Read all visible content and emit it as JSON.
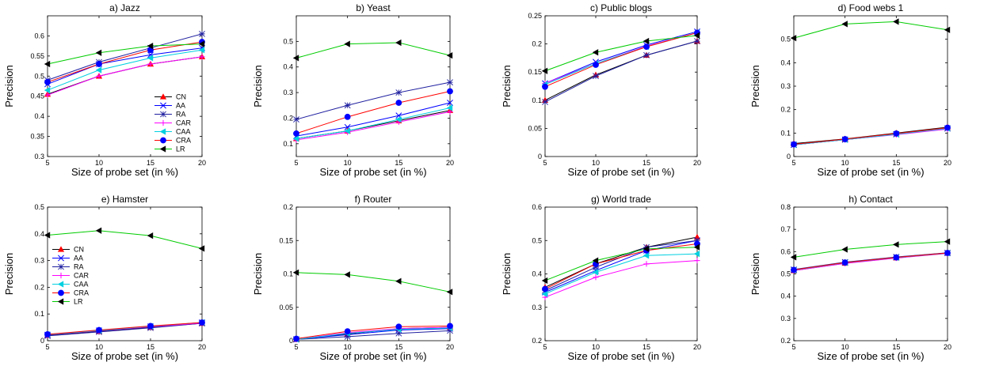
{
  "figure": {
    "series_colors": {
      "CN": "#000000",
      "AA": "#0000ff",
      "RA": "#1f1fa0",
      "CAR": "#ff00ff",
      "CAA": "#00d0e0",
      "CRA": "#ff0000",
      "LR": "#00cc00"
    },
    "marker_colors": {
      "CN": "#ff0000",
      "AA": "#0000ff",
      "RA": "#1f1fa0",
      "CAR": "#ff00ff",
      "CAA": "#00d0e0",
      "CRA": "#0000ff",
      "LR": "#000000"
    },
    "markers": {
      "CN": "triangle-up",
      "AA": "x",
      "RA": "asterisk",
      "CAR": "plus",
      "CAA": "triangle-left",
      "CRA": "circle",
      "LR": "triangle-left"
    }
  },
  "chart_data": [
    {
      "type": "line",
      "title": "a) Jazz",
      "xlabel": "Size of probe set (in %)",
      "ylabel": "Precision",
      "x": [
        5,
        10,
        15,
        20
      ],
      "xticks": [
        5,
        10,
        15,
        20
      ],
      "ylim": [
        0.3,
        0.65
      ],
      "yticks": [
        0.3,
        0.35,
        0.4,
        0.45,
        0.5,
        0.55,
        0.6
      ],
      "yticklabels": [
        "0.3",
        "0.35",
        "0.4",
        "0.45",
        "0.5",
        "0.55",
        "0.6"
      ],
      "legend": "bottom-right",
      "series": [
        {
          "name": "CN",
          "values": [
            0.455,
            0.5,
            0.53,
            0.548
          ]
        },
        {
          "name": "AA",
          "values": [
            0.48,
            0.53,
            0.553,
            0.57
          ]
        },
        {
          "name": "RA",
          "values": [
            0.49,
            0.535,
            0.57,
            0.605
          ]
        },
        {
          "name": "CAR",
          "values": [
            0.453,
            0.5,
            0.53,
            0.548
          ]
        },
        {
          "name": "CAA",
          "values": [
            0.465,
            0.515,
            0.545,
            0.565
          ]
        },
        {
          "name": "CRA",
          "values": [
            0.485,
            0.53,
            0.565,
            0.585
          ]
        },
        {
          "name": "LR",
          "values": [
            0.53,
            0.558,
            0.575,
            0.58
          ]
        }
      ]
    },
    {
      "type": "line",
      "title": "b) Yeast",
      "xlabel": "Size of probe set (in %)",
      "ylabel": "Precision",
      "x": [
        5,
        10,
        15,
        20
      ],
      "xticks": [
        5,
        10,
        15,
        20
      ],
      "ylim": [
        0.05,
        0.6
      ],
      "yticks": [
        0.1,
        0.2,
        0.3,
        0.4,
        0.5
      ],
      "yticklabels": [
        "0.1",
        "0.2",
        "0.3",
        "0.4",
        "0.5"
      ],
      "series": [
        {
          "name": "CN",
          "values": [
            0.12,
            0.15,
            0.19,
            0.23
          ]
        },
        {
          "name": "AA",
          "values": [
            0.13,
            0.165,
            0.21,
            0.26
          ]
        },
        {
          "name": "RA",
          "values": [
            0.195,
            0.25,
            0.3,
            0.34
          ]
        },
        {
          "name": "CAR",
          "values": [
            0.115,
            0.145,
            0.185,
            0.225
          ]
        },
        {
          "name": "CAA",
          "values": [
            0.12,
            0.15,
            0.195,
            0.24
          ]
        },
        {
          "name": "CRA",
          "values": [
            0.14,
            0.205,
            0.26,
            0.305
          ]
        },
        {
          "name": "LR",
          "values": [
            0.435,
            0.49,
            0.495,
            0.445
          ]
        }
      ]
    },
    {
      "type": "line",
      "title": "c) Public blogs",
      "xlabel": "Size of probe set (in %)",
      "ylabel": "Precision",
      "x": [
        5,
        10,
        15,
        20
      ],
      "xticks": [
        5,
        10,
        15,
        20
      ],
      "ylim": [
        0,
        0.25
      ],
      "yticks": [
        0,
        0.05,
        0.1,
        0.15,
        0.2,
        0.25
      ],
      "yticklabels": [
        "0",
        "0.05",
        "0.1",
        "0.15",
        "0.2",
        "0.25"
      ],
      "series": [
        {
          "name": "CN",
          "values": [
            0.1,
            0.145,
            0.18,
            0.205
          ]
        },
        {
          "name": "AA",
          "values": [
            0.13,
            0.168,
            0.198,
            0.222
          ]
        },
        {
          "name": "RA",
          "values": [
            0.097,
            0.143,
            0.18,
            0.205
          ]
        },
        {
          "name": "CAR",
          "values": [
            0.13,
            0.165,
            0.196,
            0.22
          ]
        },
        {
          "name": "CAA",
          "values": [
            0.128,
            0.165,
            0.195,
            0.22
          ]
        },
        {
          "name": "CRA",
          "values": [
            0.124,
            0.163,
            0.195,
            0.22
          ]
        },
        {
          "name": "LR",
          "values": [
            0.152,
            0.185,
            0.205,
            0.215
          ]
        }
      ]
    },
    {
      "type": "line",
      "title": "d) Food webs 1",
      "xlabel": "Size of probe set (in %)",
      "ylabel": "Precision",
      "x": [
        5,
        10,
        15,
        20
      ],
      "xticks": [
        5,
        10,
        15,
        20
      ],
      "ylim": [
        0,
        0.6
      ],
      "yticks": [
        0,
        0.1,
        0.2,
        0.3,
        0.4,
        0.5
      ],
      "yticklabels": [
        "0",
        "0.1",
        "0.2",
        "0.3",
        "0.4",
        "0.5"
      ],
      "series": [
        {
          "name": "CN",
          "values": [
            0.055,
            0.075,
            0.1,
            0.125
          ]
        },
        {
          "name": "AA",
          "values": [
            0.05,
            0.072,
            0.095,
            0.12
          ]
        },
        {
          "name": "RA",
          "values": [
            0.05,
            0.072,
            0.095,
            0.12
          ]
        },
        {
          "name": "CAR",
          "values": [
            0.05,
            0.072,
            0.093,
            0.117
          ]
        },
        {
          "name": "CAA",
          "values": [
            0.05,
            0.072,
            0.095,
            0.12
          ]
        },
        {
          "name": "CRA",
          "values": [
            0.052,
            0.074,
            0.098,
            0.123
          ]
        },
        {
          "name": "LR",
          "values": [
            0.505,
            0.565,
            0.575,
            0.54
          ]
        }
      ]
    },
    {
      "type": "line",
      "title": "e) Hamster",
      "xlabel": "Size of probe set (in %)",
      "ylabel": "Precision",
      "x": [
        5,
        10,
        15,
        20
      ],
      "xticks": [
        5,
        10,
        15,
        20
      ],
      "ylim": [
        0,
        0.5
      ],
      "yticks": [
        0,
        0.1,
        0.2,
        0.3,
        0.4,
        0.5
      ],
      "yticklabels": [
        "0",
        "0.1",
        "0.2",
        "0.3",
        "0.4",
        "0.5"
      ],
      "legend": "top-left",
      "series": [
        {
          "name": "CN",
          "values": [
            0.02,
            0.035,
            0.05,
            0.065
          ]
        },
        {
          "name": "AA",
          "values": [
            0.022,
            0.038,
            0.053,
            0.068
          ]
        },
        {
          "name": "RA",
          "values": [
            0.018,
            0.033,
            0.048,
            0.065
          ]
        },
        {
          "name": "CAR",
          "values": [
            0.022,
            0.037,
            0.052,
            0.066
          ]
        },
        {
          "name": "CAA",
          "values": [
            0.023,
            0.038,
            0.054,
            0.068
          ]
        },
        {
          "name": "CRA",
          "values": [
            0.024,
            0.04,
            0.055,
            0.068
          ]
        },
        {
          "name": "LR",
          "values": [
            0.395,
            0.412,
            0.393,
            0.345
          ]
        }
      ]
    },
    {
      "type": "line",
      "title": "f) Router",
      "xlabel": "Size of probe set (in %)",
      "ylabel": "Precision",
      "x": [
        5,
        10,
        15,
        20
      ],
      "xticks": [
        5,
        10,
        15,
        20
      ],
      "ylim": [
        0,
        0.2
      ],
      "yticks": [
        0,
        0.05,
        0.1,
        0.15,
        0.2
      ],
      "yticklabels": [
        "0",
        "0.05",
        "0.1",
        "0.15",
        "0.2"
      ],
      "series": [
        {
          "name": "CN",
          "values": [
            0.002,
            0.01,
            0.018,
            0.02
          ]
        },
        {
          "name": "AA",
          "values": [
            0.002,
            0.009,
            0.016,
            0.018
          ]
        },
        {
          "name": "RA",
          "values": [
            0.002,
            0.006,
            0.011,
            0.015
          ]
        },
        {
          "name": "CAR",
          "values": [
            0.002,
            0.012,
            0.018,
            0.02
          ]
        },
        {
          "name": "CAA",
          "values": [
            0.002,
            0.011,
            0.017,
            0.019
          ]
        },
        {
          "name": "CRA",
          "values": [
            0.003,
            0.014,
            0.021,
            0.022
          ]
        },
        {
          "name": "LR",
          "values": [
            0.102,
            0.099,
            0.089,
            0.073
          ]
        }
      ]
    },
    {
      "type": "line",
      "title": "g) World trade",
      "xlabel": "Size of probe set (in %)",
      "ylabel": "Precision",
      "x": [
        5,
        10,
        15,
        20
      ],
      "xticks": [
        5,
        10,
        15,
        20
      ],
      "ylim": [
        0.2,
        0.6
      ],
      "yticks": [
        0.2,
        0.3,
        0.4,
        0.5,
        0.6
      ],
      "yticklabels": [
        "0.2",
        "0.3",
        "0.4",
        "0.5",
        "0.6"
      ],
      "series": [
        {
          "name": "CN",
          "values": [
            0.36,
            0.43,
            0.48,
            0.51
          ]
        },
        {
          "name": "AA",
          "values": [
            0.345,
            0.41,
            0.47,
            0.5
          ]
        },
        {
          "name": "RA",
          "values": [
            0.35,
            0.42,
            0.48,
            0.5
          ]
        },
        {
          "name": "CAR",
          "values": [
            0.33,
            0.39,
            0.43,
            0.44
          ]
        },
        {
          "name": "CAA",
          "values": [
            0.34,
            0.405,
            0.455,
            0.46
          ]
        },
        {
          "name": "CRA",
          "values": [
            0.355,
            0.43,
            0.47,
            0.49
          ]
        },
        {
          "name": "LR",
          "values": [
            0.38,
            0.44,
            0.475,
            0.48
          ]
        }
      ]
    },
    {
      "type": "line",
      "title": "h) Contact",
      "xlabel": "Size of probe set (in %)",
      "ylabel": "Precision",
      "x": [
        5,
        10,
        15,
        20
      ],
      "xticks": [
        5,
        10,
        15,
        20
      ],
      "ylim": [
        0.2,
        0.8
      ],
      "yticks": [
        0.2,
        0.3,
        0.4,
        0.5,
        0.6,
        0.7,
        0.8
      ],
      "yticklabels": [
        "0.2",
        "0.3",
        "0.4",
        "0.5",
        "0.6",
        "0.7",
        "0.8"
      ],
      "series": [
        {
          "name": "CN",
          "values": [
            0.515,
            0.548,
            0.572,
            0.593
          ]
        },
        {
          "name": "AA",
          "values": [
            0.518,
            0.552,
            0.575,
            0.594
          ]
        },
        {
          "name": "RA",
          "values": [
            0.52,
            0.553,
            0.576,
            0.595
          ]
        },
        {
          "name": "CAR",
          "values": [
            0.515,
            0.547,
            0.571,
            0.592
          ]
        },
        {
          "name": "CAA",
          "values": [
            0.517,
            0.55,
            0.573,
            0.593
          ]
        },
        {
          "name": "CRA",
          "values": [
            0.518,
            0.551,
            0.574,
            0.594
          ]
        },
        {
          "name": "LR",
          "values": [
            0.575,
            0.61,
            0.632,
            0.645
          ]
        }
      ]
    }
  ]
}
